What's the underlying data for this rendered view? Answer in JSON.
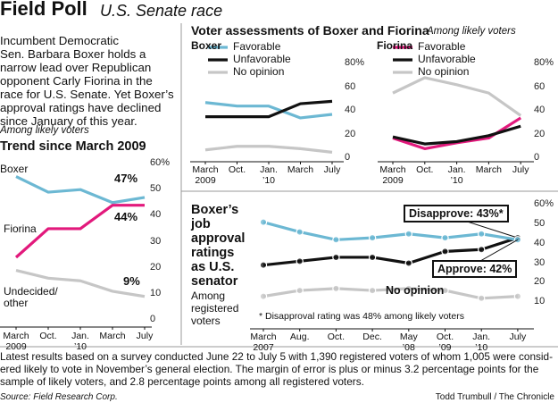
{
  "header": {
    "title": "Field Poll",
    "subtitle": "U.S. Senate race",
    "intro": "Incumbent Democratic\nSen. Barbara Boxer holds a\nnarrow lead over Republican\nopponent Carly Fiorina in the\nrace for U.S. Senate. Yet Boxer’s\napproval ratings have declined\nsince January of this year."
  },
  "chart_data": [
    {
      "type": "line",
      "title": "Trend since March 2009",
      "subtitle": "Among likely voters",
      "categories": [
        "March\n2009",
        "Oct.",
        "Jan.\n’10",
        "March",
        "July"
      ],
      "ylim": [
        0,
        60
      ],
      "yticks": [
        0,
        10,
        20,
        30,
        40,
        50,
        {
          "value": 60,
          "label": "60%"
        }
      ],
      "series": [
        {
          "name": "Boxer",
          "color": "#6cb8d3",
          "values": [
            55,
            49,
            50,
            45,
            47
          ],
          "value_labels": [
            null,
            null,
            null,
            null,
            "47%"
          ]
        },
        {
          "name": "Fiorina",
          "color": "#e2197c",
          "values": [
            24,
            35,
            35,
            44,
            44
          ],
          "value_labels": [
            null,
            null,
            null,
            null,
            "44%"
          ]
        },
        {
          "name": "Undecided/\nother",
          "color": "#c6c6c6",
          "values": [
            19,
            16,
            15,
            11,
            9
          ],
          "value_labels": [
            null,
            null,
            null,
            null,
            "9%"
          ]
        }
      ]
    },
    {
      "type": "line",
      "group_title": "Voter assessments of Boxer and Fiorina",
      "group_subtitle": "Among likely voters",
      "title": "Boxer",
      "categories": [
        "March\n2009",
        "Oct.",
        "Jan.\n’10",
        "March",
        "July"
      ],
      "ylim": [
        0,
        80
      ],
      "yticks": [
        0,
        20,
        40,
        60,
        {
          "value": 80,
          "label": "80%"
        }
      ],
      "legend": true,
      "series": [
        {
          "name": "Favorable",
          "color": "#6cb8d3",
          "values": [
            47,
            44,
            44,
            34,
            37
          ]
        },
        {
          "name": "Unfavorable",
          "color": "#111111",
          "values": [
            35,
            35,
            35,
            46,
            48
          ]
        },
        {
          "name": "No opinion",
          "color": "#c6c6c6",
          "values": [
            7,
            10,
            10,
            8,
            5
          ]
        }
      ]
    },
    {
      "type": "line",
      "title": "Fiorina",
      "categories": [
        "March\n2009",
        "Oct.",
        "Jan.\n’10",
        "March",
        "July"
      ],
      "ylim": [
        0,
        80
      ],
      "yticks": [
        0,
        20,
        40,
        60,
        {
          "value": 80,
          "label": "80%"
        }
      ],
      "legend": true,
      "series": [
        {
          "name": "Favorable",
          "color": "#e2197c",
          "values": [
            17,
            8,
            13,
            17,
            34
          ]
        },
        {
          "name": "Unfavorable",
          "color": "#111111",
          "values": [
            18,
            12,
            14,
            19,
            27
          ]
        },
        {
          "name": "No opinion",
          "color": "#c6c6c6",
          "values": [
            55,
            68,
            62,
            55,
            36
          ]
        }
      ]
    },
    {
      "type": "line",
      "title": "Boxer’s\njob\napproval\nratings\nas U.S.\nsenator",
      "subtitle": "Among\nregistered\nvoters",
      "note": "* Disapproval rating was 48% among likely voters",
      "categories": [
        "March\n2007",
        "Aug.",
        "Oct.",
        "Dec.",
        "May\n’08",
        "Oct.\n’09",
        "Jan.\n’10",
        "July"
      ],
      "ylim": [
        0,
        60
      ],
      "yticks": [
        10,
        20,
        30,
        40,
        50,
        {
          "value": 60,
          "label": "60%"
        }
      ],
      "markers": true,
      "series": [
        {
          "label": "Disapprove: 43%*",
          "color": "#111111",
          "values": [
            29,
            31,
            33,
            33,
            30,
            36,
            37,
            43
          ]
        },
        {
          "label": "Approve: 42%",
          "color": "#6cb8d3",
          "values": [
            51,
            46,
            42,
            43,
            45,
            43,
            45,
            42
          ]
        },
        {
          "label": "No opinion",
          "color": "#c6c6c6",
          "values": [
            13,
            16,
            17,
            16,
            17,
            16,
            12,
            13
          ]
        }
      ]
    }
  ],
  "footer": {
    "note": "Latest results based on a survey conducted June 22 to July 5 with 1,390 registered voters of whom 1,005 were consid-\nered likely to vote in November’s general election. The margin of error is plus or minus 3.2 percentage points for the\nsample of likely voters, and 2.8 percentage points among all registered voters.",
    "source": "Source: Field Research Corp.",
    "credit": "Todd Trumbull / The Chronicle"
  }
}
